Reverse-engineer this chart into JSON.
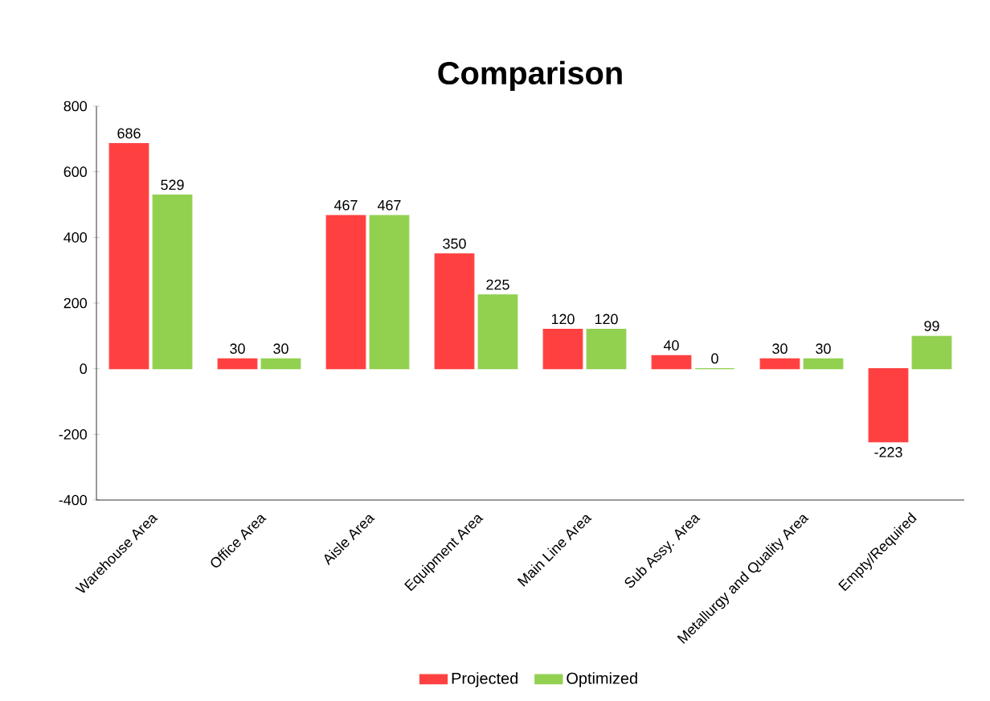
{
  "chart_data": {
    "type": "bar",
    "title": "Comparison",
    "categories": [
      "Warehouse Area",
      "Office Area",
      "Aisle Area",
      "Equipment Area",
      "Main Line Area",
      "Sub Assy. Area",
      "Metallurgy and Quality Area",
      "Empty/Required"
    ],
    "series": [
      {
        "name": "Projected",
        "color": "#ff4040",
        "values": [
          686,
          30,
          467,
          350,
          120,
          40,
          30,
          -223
        ]
      },
      {
        "name": "Optimized",
        "color": "#92d050",
        "values": [
          529,
          30,
          467,
          225,
          120,
          0,
          30,
          99
        ]
      }
    ],
    "ylim": [
      -400,
      800
    ],
    "yticks": [
      -400,
      -200,
      0,
      200,
      400,
      600,
      800
    ],
    "data_labels": true,
    "legend": "bottom",
    "grid": false
  }
}
